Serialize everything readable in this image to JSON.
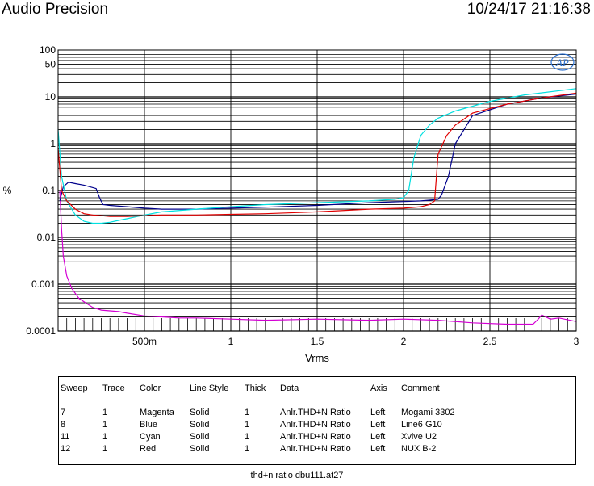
{
  "header": {
    "brand": "Audio Precision",
    "timestamp": "10/24/17 21:16:38"
  },
  "chart_data": {
    "type": "line",
    "xlabel": "Vrms",
    "ylabel": "%",
    "xlim": [
      0,
      3
    ],
    "ylim": [
      0.0001,
      100
    ],
    "y_scale": "log",
    "grid": true,
    "x_ticks": [
      {
        "value": 0.5,
        "label": "500m"
      },
      {
        "value": 1,
        "label": "1"
      },
      {
        "value": 1.5,
        "label": "1.5"
      },
      {
        "value": 2,
        "label": "2"
      },
      {
        "value": 2.5,
        "label": "2.5"
      },
      {
        "value": 3,
        "label": "3"
      }
    ],
    "y_ticks": [
      {
        "value": 100,
        "label": "100"
      },
      {
        "value": 50,
        "label": "50"
      },
      {
        "value": 10,
        "label": "10"
      },
      {
        "value": 1,
        "label": "1"
      },
      {
        "value": 0.1,
        "label": "0.1"
      },
      {
        "value": 0.01,
        "label": "0.01"
      },
      {
        "value": 0.001,
        "label": "0.001"
      },
      {
        "value": 0.0001,
        "label": "0.0001"
      }
    ],
    "series": [
      {
        "name": "Mogami 3302",
        "color": "#d400d4",
        "x": [
          0.01,
          0.02,
          0.03,
          0.05,
          0.08,
          0.12,
          0.16,
          0.2,
          0.25,
          0.3,
          0.35,
          0.4,
          0.5,
          0.6,
          0.7,
          0.8,
          1.0,
          1.2,
          1.5,
          1.8,
          2.0,
          2.2,
          2.4,
          2.6,
          2.75,
          2.78,
          2.8,
          2.85,
          2.9,
          3.0
        ],
        "y": [
          0.1,
          0.015,
          0.004,
          0.0015,
          0.0008,
          0.0005,
          0.0004,
          0.00032,
          0.00028,
          0.00027,
          0.00026,
          0.00024,
          0.00021,
          0.0002,
          0.00019,
          0.00019,
          0.00018,
          0.00017,
          0.00018,
          0.00017,
          0.00018,
          0.00017,
          0.00015,
          0.00014,
          0.00014,
          0.00018,
          0.00022,
          0.00018,
          0.00019,
          0.00016
        ]
      },
      {
        "name": "Line6 G10",
        "color": "#00008b",
        "x": [
          0.01,
          0.03,
          0.06,
          0.1,
          0.15,
          0.22,
          0.24,
          0.26,
          0.3,
          0.4,
          0.5,
          0.6,
          0.8,
          1.0,
          1.2,
          1.5,
          1.8,
          2.0,
          2.1,
          2.15,
          2.2,
          2.22,
          2.26,
          2.3,
          2.4,
          2.6,
          2.8,
          3.0
        ],
        "y": [
          0.06,
          0.12,
          0.15,
          0.14,
          0.13,
          0.11,
          0.07,
          0.05,
          0.048,
          0.045,
          0.042,
          0.04,
          0.04,
          0.042,
          0.044,
          0.048,
          0.055,
          0.058,
          0.06,
          0.062,
          0.065,
          0.08,
          0.2,
          1.0,
          4.0,
          7.0,
          9.5,
          11.5
        ]
      },
      {
        "name": "Xvive U2",
        "color": "#00e0e0",
        "x": [
          0.0,
          0.02,
          0.05,
          0.1,
          0.15,
          0.2,
          0.25,
          0.3,
          0.35,
          0.4,
          0.5,
          0.6,
          0.8,
          1.0,
          1.2,
          1.5,
          1.8,
          1.95,
          2.0,
          2.03,
          2.06,
          2.1,
          2.15,
          2.2,
          2.3,
          2.5,
          2.7,
          3.0
        ],
        "y": [
          2.0,
          0.2,
          0.06,
          0.03,
          0.022,
          0.02,
          0.02,
          0.021,
          0.023,
          0.025,
          0.03,
          0.035,
          0.04,
          0.045,
          0.05,
          0.055,
          0.06,
          0.065,
          0.07,
          0.1,
          0.5,
          1.5,
          2.5,
          3.5,
          5.0,
          8.0,
          11.0,
          15.0
        ]
      },
      {
        "name": "NUX B-2",
        "color": "#e00000",
        "x": [
          0.0,
          0.02,
          0.05,
          0.1,
          0.15,
          0.2,
          0.25,
          0.3,
          0.4,
          0.5,
          0.6,
          0.8,
          1.0,
          1.2,
          1.5,
          1.8,
          2.0,
          2.1,
          2.15,
          2.18,
          2.2,
          2.25,
          2.3,
          2.4,
          2.6,
          2.8,
          3.0
        ],
        "y": [
          0.8,
          0.1,
          0.06,
          0.04,
          0.032,
          0.03,
          0.029,
          0.028,
          0.028,
          0.029,
          0.03,
          0.03,
          0.031,
          0.032,
          0.035,
          0.04,
          0.042,
          0.045,
          0.05,
          0.06,
          0.6,
          1.5,
          2.5,
          4.5,
          7.0,
          9.5,
          12.0
        ]
      }
    ]
  },
  "legend": {
    "headers": [
      "Sweep",
      "Trace",
      "Color",
      "Line Style",
      "Thick",
      "Data",
      "Axis",
      "Comment"
    ],
    "rows": [
      [
        "7",
        "1",
        "Magenta",
        "Solid",
        "1",
        "Anlr.THD+N Ratio",
        "Left",
        "Mogami 3302"
      ],
      [
        "8",
        "1",
        "Blue",
        "Solid",
        "1",
        "Anlr.THD+N Ratio",
        "Left",
        "Line6 G10"
      ],
      [
        "11",
        "1",
        "Cyan",
        "Solid",
        "1",
        "Anlr.THD+N Ratio",
        "Left",
        "Xvive U2"
      ],
      [
        "12",
        "1",
        "Red",
        "Solid",
        "1",
        "Anlr.THD+N Ratio",
        "Left",
        "NUX B-2"
      ]
    ]
  },
  "footer": {
    "caption": "thd+n ratio dbu111.at27"
  }
}
